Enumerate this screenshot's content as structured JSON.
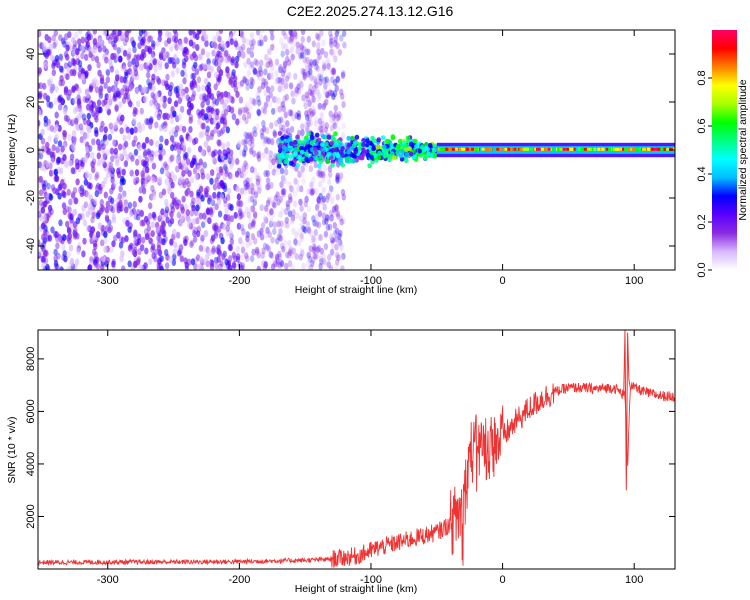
{
  "title": "C2E2.2025.274.13.12.G16",
  "chart_data": [
    {
      "type": "heatmap",
      "name": "spectrogram",
      "xlabel": "Height of straight line (km)",
      "ylabel": "Frequency (Hz)",
      "xlim": [
        -353,
        131
      ],
      "ylim": [
        -50,
        50
      ],
      "xticks": [
        "-300",
        "-200",
        "-100",
        "0",
        "100"
      ],
      "yticks": [
        "-40",
        "-20",
        "0",
        "20",
        "40"
      ],
      "colorbar": {
        "label": "Normalized spectral amplitude",
        "range": [
          0.0,
          1.0
        ],
        "ticks": [
          "0.0",
          "0.2",
          "0.4",
          "0.6",
          "0.8"
        ],
        "colors": [
          "#ffffff",
          "#d8b8ff",
          "#8a2be2",
          "#5a00ff",
          "#0000ff",
          "#00bfff",
          "#00ffff",
          "#00ff80",
          "#00ff00",
          "#aaff00",
          "#ffff00",
          "#ff8000",
          "#ff0000",
          "#ff0066"
        ]
      },
      "regions": [
        {
          "x_from": -353,
          "x_to": -120,
          "freq_spread": 50,
          "amplitude": 0.2
        },
        {
          "x_from": -170,
          "x_to": -50,
          "freq_spread": 10,
          "amplitude": 0.45
        },
        {
          "x_from": -50,
          "x_to": 131,
          "freq_spread": 3,
          "amplitude": 0.9
        }
      ]
    },
    {
      "type": "line",
      "name": "snr",
      "xlabel": "Height of straight line (km)",
      "ylabel": "SNR (10 * v/v)",
      "xlim": [
        -353,
        131
      ],
      "ylim": [
        0,
        9100
      ],
      "xticks": [
        "-300",
        "-200",
        "-100",
        "0",
        "100"
      ],
      "yticks": [
        "2000",
        "4000",
        "6000",
        "8000"
      ],
      "color": "#ee3333",
      "series": [
        {
          "name": "SNR",
          "x": [
            -353,
            -300,
            -250,
            -200,
            -150,
            -130,
            -110,
            -95,
            -80,
            -65,
            -50,
            -40,
            -30,
            -25,
            -20,
            -15,
            -10,
            -5,
            0,
            10,
            20,
            30,
            40,
            50,
            60,
            70,
            80,
            85,
            90,
            93,
            95,
            97,
            100,
            110,
            120,
            131
          ],
          "y": [
            250,
            260,
            270,
            280,
            330,
            380,
            500,
            800,
            1000,
            1200,
            1400,
            1700,
            2300,
            4400,
            4600,
            4700,
            4600,
            4800,
            5000,
            5600,
            6100,
            6500,
            6750,
            6900,
            6900,
            6850,
            6900,
            6900,
            6700,
            6600,
            4000,
            7000,
            6900,
            6700,
            6600,
            6550
          ]
        }
      ]
    }
  ]
}
